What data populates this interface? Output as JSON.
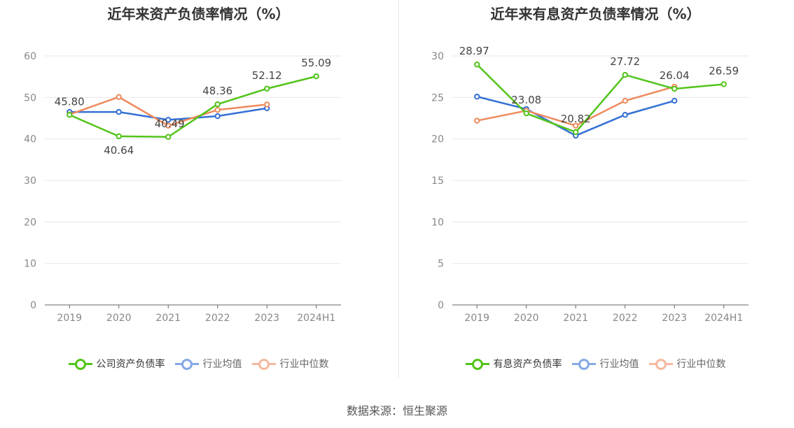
{
  "source_text": "数据来源：恒生聚源",
  "chart_data": [
    {
      "type": "line",
      "title": "近年来资产负债率情况（%）",
      "categories": [
        "2019",
        "2020",
        "2021",
        "2022",
        "2023",
        "2024H1"
      ],
      "ylim": [
        0,
        60
      ],
      "yticks": [
        0,
        10,
        20,
        30,
        40,
        50,
        60
      ],
      "grid": true,
      "legend_position": "bottom",
      "series": [
        {
          "name": "公司资产负债率",
          "color": "#52c41a",
          "labeled": true,
          "values": [
            45.8,
            40.64,
            40.49,
            48.36,
            52.12,
            55.09
          ],
          "labels": [
            "45.80",
            "40.64",
            "40.49",
            "48.36",
            "52.12",
            "55.09"
          ]
        },
        {
          "name": "行业均值",
          "color": "#3470d4",
          "labeled": false,
          "values": [
            46.5,
            46.5,
            44.6,
            45.5,
            47.4,
            null
          ]
        },
        {
          "name": "行业中位数",
          "color": "#ee8a5c",
          "labeled": false,
          "values": [
            45.9,
            50.1,
            43.2,
            47.0,
            48.3,
            null
          ]
        }
      ]
    },
    {
      "type": "line",
      "title": "近年来有息资产负债率情况（%）",
      "categories": [
        "2019",
        "2020",
        "2021",
        "2022",
        "2023",
        "2024H1"
      ],
      "ylim": [
        0,
        30
      ],
      "yticks": [
        0,
        5,
        10,
        15,
        20,
        25,
        30
      ],
      "grid": true,
      "legend_position": "bottom",
      "series": [
        {
          "name": "有息资产负债率",
          "color": "#52c41a",
          "labeled": true,
          "values": [
            28.97,
            23.08,
            20.82,
            27.72,
            26.04,
            26.59
          ],
          "labels": [
            "28.97",
            "23.08",
            "20.82",
            "27.72",
            "26.04",
            "26.59"
          ]
        },
        {
          "name": "行业均值",
          "color": "#3470d4",
          "labeled": false,
          "values": [
            25.1,
            23.6,
            20.4,
            22.9,
            24.6,
            null
          ]
        },
        {
          "name": "行业中位数",
          "color": "#ee8a5c",
          "labeled": false,
          "values": [
            22.2,
            23.4,
            21.6,
            24.6,
            26.3,
            null
          ]
        }
      ]
    }
  ]
}
